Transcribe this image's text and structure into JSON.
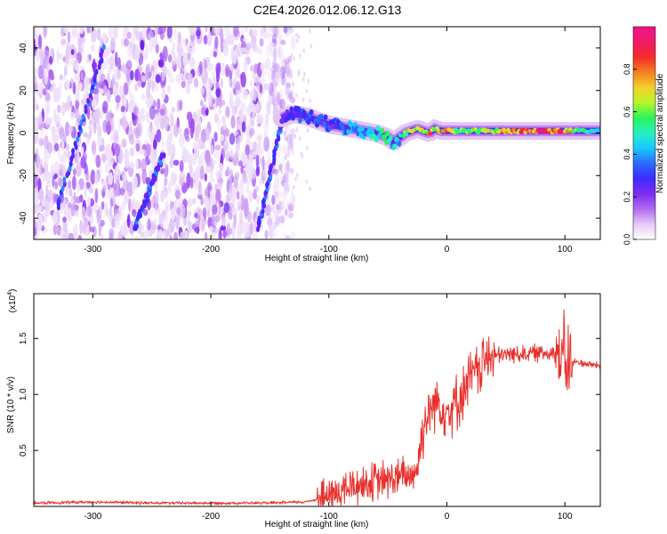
{
  "chart_data": [
    {
      "id": "spectrogram",
      "type": "heatmap",
      "title": "C2E4.2026.012.06.12.G13",
      "xlabel": "Height of straight line (km)",
      "ylabel": "Frequency (Hz)",
      "xlim": [
        -350,
        130
      ],
      "ylim": [
        -50,
        50
      ],
      "xticks": [
        -300,
        -200,
        -100,
        0,
        100
      ],
      "xtick_labels": [
        "-300",
        "-200",
        "-100",
        "0",
        "100"
      ],
      "yticks": [
        -40,
        -20,
        0,
        20,
        40
      ],
      "ytick_labels": [
        "-40",
        "-20",
        "0",
        "20",
        "40"
      ],
      "colorbar": {
        "label": "Normalized spectral amplitude",
        "range": [
          0,
          1
        ],
        "ticks": [
          0.0,
          0.2,
          0.4,
          0.6,
          0.8
        ],
        "tick_labels": [
          "0.0",
          "0.2",
          "0.4",
          "0.6",
          "0.8"
        ],
        "colors": [
          "#ffffff",
          "#e6c8f5",
          "#b26bf2",
          "#7d2cf0",
          "#3d2bff",
          "#2b6bff",
          "#19c8ff",
          "#25f0c0",
          "#2bf55a",
          "#b8f52b",
          "#f5d02b",
          "#f57f1f",
          "#f52b2b",
          "#f01a6a",
          "#f0148c"
        ]
      },
      "noise_region_x": [
        -350,
        -145
      ],
      "signal_trace": {
        "x": [
          -140,
          -130,
          -120,
          -110,
          -100,
          -90,
          -80,
          -70,
          -60,
          -50,
          -45,
          -40,
          -35,
          -30,
          -25,
          -20,
          -15,
          -10,
          -5,
          0,
          10,
          20,
          30,
          40,
          50,
          60,
          70,
          80,
          90,
          100,
          110,
          120,
          130
        ],
        "y": [
          7,
          9,
          8,
          6,
          4,
          3,
          2,
          1,
          0,
          -2,
          -4,
          -2,
          0,
          1,
          2,
          1,
          0,
          2,
          1,
          1,
          1,
          1,
          1,
          1,
          1,
          1,
          1,
          1,
          1,
          1,
          1,
          1,
          1
        ],
        "amplitude": [
          0.25,
          0.3,
          0.35,
          0.35,
          0.3,
          0.35,
          0.4,
          0.45,
          0.5,
          0.55,
          0.45,
          0.5,
          0.6,
          0.7,
          0.75,
          0.65,
          0.8,
          0.7,
          0.75,
          0.8,
          0.6,
          0.6,
          0.65,
          0.7,
          0.75,
          0.85,
          0.95,
          0.95,
          0.9,
          0.85,
          0.6,
          0.5,
          0.45
        ]
      },
      "diagonal_streaks": [
        {
          "x": [
            -330,
            -290
          ],
          "y": [
            -35,
            40
          ]
        },
        {
          "x": [
            -265,
            -240
          ],
          "y": [
            -45,
            -10
          ]
        },
        {
          "x": [
            -160,
            -140
          ],
          "y": [
            -45,
            5
          ]
        }
      ]
    },
    {
      "id": "snr",
      "type": "line",
      "xlabel": "Height of straight line (km)",
      "ylabel": "SNR (10 * v/v)",
      "y_multiplier": "(x10",
      "y_exponent": "4",
      "y_multiplier_close": ")",
      "xlim": [
        -350,
        130
      ],
      "ylim": [
        0,
        1.9
      ],
      "xticks": [
        -300,
        -200,
        -100,
        0,
        100
      ],
      "xtick_labels": [
        "-300",
        "-200",
        "-100",
        "0",
        "100"
      ],
      "yticks": [
        0.5,
        1.0,
        1.5
      ],
      "ytick_labels": [
        "0.5",
        "1.0",
        "1.5"
      ],
      "color": "#e8302c",
      "series": [
        {
          "name": "SNR",
          "x": [
            -350,
            -300,
            -250,
            -200,
            -150,
            -120,
            -100,
            -90,
            -80,
            -70,
            -60,
            -50,
            -40,
            -30,
            -25,
            -20,
            -15,
            -10,
            -5,
            0,
            5,
            10,
            15,
            20,
            25,
            30,
            35,
            40,
            45,
            50,
            60,
            70,
            80,
            90,
            95,
            100,
            105,
            110,
            120,
            130
          ],
          "y": [
            0.03,
            0.04,
            0.03,
            0.03,
            0.03,
            0.04,
            0.09,
            0.13,
            0.18,
            0.2,
            0.22,
            0.24,
            0.26,
            0.28,
            0.35,
            0.7,
            0.85,
            0.95,
            0.9,
            0.85,
            0.9,
            0.95,
            1.05,
            1.15,
            1.2,
            1.28,
            1.32,
            1.35,
            1.34,
            1.36,
            1.36,
            1.37,
            1.37,
            1.38,
            1.35,
            1.3,
            1.28,
            1.29,
            1.27,
            1.26
          ]
        }
      ]
    }
  ]
}
